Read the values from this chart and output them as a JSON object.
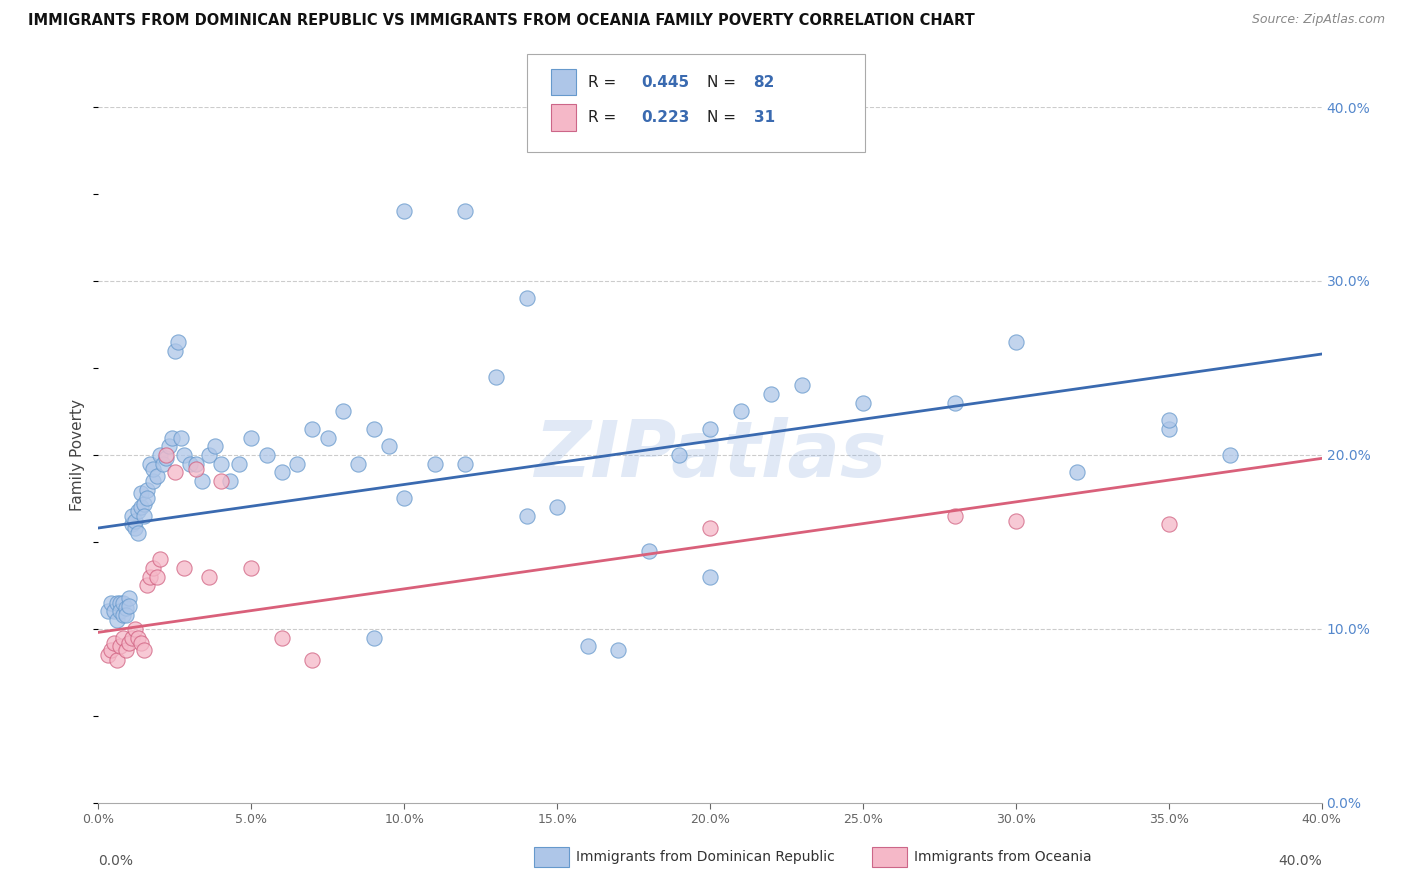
{
  "title": "IMMIGRANTS FROM DOMINICAN REPUBLIC VS IMMIGRANTS FROM OCEANIA FAMILY POVERTY CORRELATION CHART",
  "source": "Source: ZipAtlas.com",
  "ylabel": "Family Poverty",
  "legend_label1": "Immigrants from Dominican Republic",
  "legend_label2": "Immigrants from Oceania",
  "r1": 0.445,
  "n1": 82,
  "r2": 0.223,
  "n2": 31,
  "color_blue": "#aec6e8",
  "color_pink": "#f5b8c8",
  "line_color_blue": "#3a6ab0",
  "line_color_pink": "#d9607a",
  "watermark": "ZIPatlas",
  "xlim": [
    0.0,
    0.4
  ],
  "ylim": [
    0.0,
    0.4
  ],
  "blue_line_y_start": 0.158,
  "blue_line_y_end": 0.258,
  "pink_line_y_start": 0.098,
  "pink_line_y_end": 0.198,
  "blue_dots_x": [
    0.003,
    0.004,
    0.005,
    0.006,
    0.006,
    0.007,
    0.007,
    0.008,
    0.008,
    0.009,
    0.009,
    0.01,
    0.01,
    0.011,
    0.011,
    0.012,
    0.012,
    0.013,
    0.013,
    0.014,
    0.014,
    0.015,
    0.015,
    0.016,
    0.016,
    0.017,
    0.018,
    0.018,
    0.019,
    0.02,
    0.021,
    0.022,
    0.023,
    0.024,
    0.025,
    0.026,
    0.027,
    0.028,
    0.03,
    0.032,
    0.034,
    0.036,
    0.038,
    0.04,
    0.043,
    0.046,
    0.05,
    0.055,
    0.06,
    0.065,
    0.07,
    0.075,
    0.08,
    0.085,
    0.09,
    0.095,
    0.1,
    0.11,
    0.12,
    0.13,
    0.14,
    0.15,
    0.16,
    0.17,
    0.18,
    0.19,
    0.2,
    0.21,
    0.22,
    0.23,
    0.25,
    0.28,
    0.3,
    0.32,
    0.35,
    0.37,
    0.14,
    0.2,
    0.35,
    0.09,
    0.1,
    0.12
  ],
  "blue_dots_y": [
    0.11,
    0.115,
    0.11,
    0.115,
    0.105,
    0.115,
    0.11,
    0.115,
    0.108,
    0.112,
    0.108,
    0.118,
    0.113,
    0.16,
    0.165,
    0.158,
    0.162,
    0.168,
    0.155,
    0.17,
    0.178,
    0.172,
    0.165,
    0.18,
    0.175,
    0.195,
    0.185,
    0.192,
    0.188,
    0.2,
    0.195,
    0.198,
    0.205,
    0.21,
    0.26,
    0.265,
    0.21,
    0.2,
    0.195,
    0.195,
    0.185,
    0.2,
    0.205,
    0.195,
    0.185,
    0.195,
    0.21,
    0.2,
    0.19,
    0.195,
    0.215,
    0.21,
    0.225,
    0.195,
    0.215,
    0.205,
    0.175,
    0.195,
    0.195,
    0.245,
    0.165,
    0.17,
    0.09,
    0.088,
    0.145,
    0.2,
    0.215,
    0.225,
    0.235,
    0.24,
    0.23,
    0.23,
    0.265,
    0.19,
    0.215,
    0.2,
    0.29,
    0.13,
    0.22,
    0.095,
    0.34,
    0.34
  ],
  "pink_dots_x": [
    0.003,
    0.004,
    0.005,
    0.006,
    0.007,
    0.008,
    0.009,
    0.01,
    0.011,
    0.012,
    0.013,
    0.014,
    0.015,
    0.016,
    0.017,
    0.018,
    0.019,
    0.02,
    0.022,
    0.025,
    0.028,
    0.032,
    0.036,
    0.04,
    0.05,
    0.06,
    0.07,
    0.28,
    0.3,
    0.35,
    0.2
  ],
  "pink_dots_y": [
    0.085,
    0.088,
    0.092,
    0.082,
    0.09,
    0.095,
    0.088,
    0.092,
    0.095,
    0.1,
    0.095,
    0.092,
    0.088,
    0.125,
    0.13,
    0.135,
    0.13,
    0.14,
    0.2,
    0.19,
    0.135,
    0.192,
    0.13,
    0.185,
    0.135,
    0.095,
    0.082,
    0.165,
    0.162,
    0.16,
    0.158
  ]
}
